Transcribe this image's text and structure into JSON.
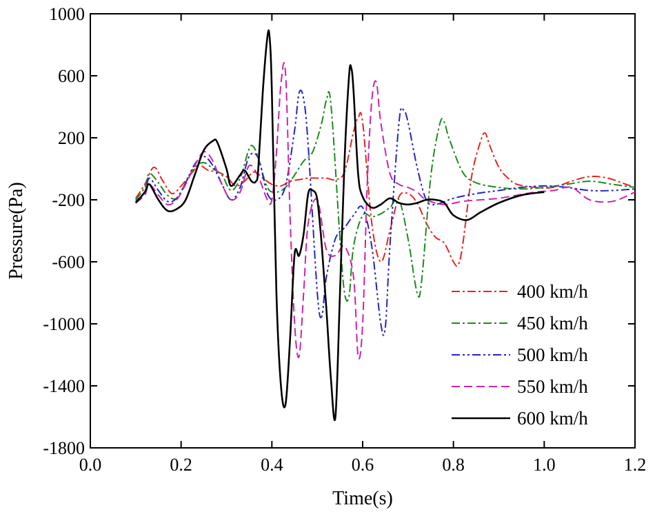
{
  "chart_data": {
    "type": "line",
    "title": "",
    "xlabel": "Time(s)",
    "ylabel": "Pressure(Pa)",
    "xlim": [
      0.0,
      1.2
    ],
    "ylim": [
      -1800,
      1000
    ],
    "xticks": [
      0.0,
      0.2,
      0.4,
      0.6,
      0.8,
      1.0,
      1.2
    ],
    "xtick_labels": [
      "0.0",
      "0.2",
      "0.4",
      "0.6",
      "0.8",
      "1.0",
      "1.2"
    ],
    "yticks": [
      1000,
      600,
      200,
      -200,
      -600,
      -1000,
      -1400,
      -1800
    ],
    "ytick_labels": [
      "1000",
      "600",
      "200",
      "-200",
      "-600",
      "-1000",
      "-1400",
      "-1800"
    ],
    "grid": false,
    "legend_position": "bottom-right",
    "series": [
      {
        "name": "400 km/h",
        "color": "#e8241c",
        "dash": "12,4,3,4",
        "x": [
          0.1,
          0.12,
          0.14,
          0.16,
          0.18,
          0.2,
          0.22,
          0.24,
          0.26,
          0.28,
          0.3,
          0.32,
          0.34,
          0.36,
          0.38,
          0.4,
          0.42,
          0.44,
          0.46,
          0.48,
          0.5,
          0.52,
          0.54,
          0.56,
          0.58,
          0.59,
          0.6,
          0.62,
          0.64,
          0.66,
          0.68,
          0.7,
          0.72,
          0.74,
          0.76,
          0.78,
          0.8,
          0.81,
          0.82,
          0.84,
          0.86,
          0.87,
          0.88,
          0.9,
          0.92,
          0.94,
          0.98,
          1.02,
          1.06,
          1.1,
          1.14,
          1.18,
          1.2
        ],
        "y": [
          -190,
          -100,
          10,
          -80,
          -160,
          -110,
          -40,
          20,
          -10,
          -20,
          -50,
          -110,
          -80,
          -20,
          -60,
          -100,
          -110,
          -80,
          -70,
          -60,
          -60,
          -60,
          -70,
          -20,
          240,
          330,
          300,
          -350,
          -600,
          -400,
          -180,
          -160,
          -220,
          -350,
          -440,
          -480,
          -600,
          -620,
          -500,
          -50,
          180,
          230,
          150,
          10,
          -60,
          -100,
          -120,
          -120,
          -80,
          -50,
          -60,
          -100,
          -120
        ]
      },
      {
        "name": "450 km/h",
        "color": "#1a8c1a",
        "dash": "12,4,3,4",
        "x": [
          0.1,
          0.12,
          0.13,
          0.15,
          0.17,
          0.19,
          0.21,
          0.23,
          0.25,
          0.27,
          0.29,
          0.31,
          0.33,
          0.35,
          0.36,
          0.37,
          0.39,
          0.41,
          0.43,
          0.45,
          0.47,
          0.49,
          0.51,
          0.52,
          0.53,
          0.55,
          0.56,
          0.57,
          0.58,
          0.6,
          0.62,
          0.64,
          0.66,
          0.68,
          0.7,
          0.72,
          0.73,
          0.75,
          0.77,
          0.78,
          0.79,
          0.82,
          0.85,
          0.9,
          0.95,
          1.0,
          1.05,
          1.1,
          1.15,
          1.2
        ],
        "y": [
          -200,
          -120,
          -30,
          -90,
          -170,
          -190,
          -90,
          10,
          40,
          0,
          -40,
          -140,
          -60,
          130,
          140,
          70,
          -120,
          -150,
          -120,
          -40,
          50,
          110,
          300,
          440,
          420,
          -450,
          -800,
          -820,
          -500,
          -300,
          -310,
          -290,
          -250,
          -200,
          -450,
          -800,
          -720,
          -50,
          290,
          300,
          200,
          -20,
          -90,
          -120,
          -130,
          -120,
          -100,
          -80,
          -100,
          -120
        ]
      },
      {
        "name": "500 km/h",
        "color": "#2222cc",
        "dash": "12,4,3,4,3,4",
        "x": [
          0.1,
          0.12,
          0.13,
          0.15,
          0.17,
          0.19,
          0.21,
          0.23,
          0.25,
          0.27,
          0.29,
          0.31,
          0.33,
          0.35,
          0.37,
          0.39,
          0.41,
          0.43,
          0.45,
          0.46,
          0.47,
          0.48,
          0.5,
          0.51,
          0.52,
          0.54,
          0.56,
          0.58,
          0.6,
          0.62,
          0.64,
          0.65,
          0.66,
          0.68,
          0.69,
          0.7,
          0.72,
          0.74,
          0.76,
          0.8,
          0.85,
          0.9,
          0.95,
          1.0,
          1.05,
          1.1,
          1.15,
          1.2
        ],
        "y": [
          -210,
          -150,
          -60,
          -140,
          -210,
          -190,
          -90,
          30,
          80,
          20,
          -100,
          -200,
          -120,
          80,
          70,
          -160,
          -200,
          -110,
          250,
          490,
          450,
          150,
          -800,
          -950,
          -700,
          -450,
          -380,
          -300,
          -250,
          -500,
          -1000,
          -1020,
          -500,
          300,
          380,
          300,
          10,
          -200,
          -230,
          -190,
          -160,
          -140,
          -120,
          -110,
          -120,
          -140,
          -140,
          -130
        ]
      },
      {
        "name": "550 km/h",
        "color": "#cc22aa",
        "dash": "12,6",
        "x": [
          0.1,
          0.12,
          0.13,
          0.15,
          0.17,
          0.19,
          0.21,
          0.23,
          0.25,
          0.27,
          0.29,
          0.31,
          0.33,
          0.35,
          0.37,
          0.39,
          0.4,
          0.41,
          0.42,
          0.43,
          0.44,
          0.45,
          0.46,
          0.47,
          0.48,
          0.5,
          0.52,
          0.54,
          0.56,
          0.58,
          0.59,
          0.6,
          0.61,
          0.62,
          0.63,
          0.64,
          0.66,
          0.68,
          0.7,
          0.72,
          0.74,
          0.78,
          0.82,
          0.86,
          0.9,
          0.94,
          0.98,
          1.02,
          1.06,
          1.1,
          1.15,
          1.2
        ],
        "y": [
          -220,
          -170,
          -100,
          -170,
          -230,
          -200,
          -100,
          20,
          110,
          50,
          -100,
          -200,
          -150,
          20,
          -50,
          -200,
          -200,
          100,
          550,
          620,
          -300,
          -1000,
          -1210,
          -800,
          -350,
          -200,
          -520,
          -560,
          -500,
          -700,
          -1210,
          -1000,
          -100,
          440,
          560,
          300,
          -30,
          -100,
          -120,
          -150,
          -200,
          -230,
          -210,
          -200,
          -190,
          -170,
          -150,
          -140,
          -120,
          -200,
          -210,
          -150
        ]
      },
      {
        "name": "600 km/h",
        "color": "#000000",
        "dash": "",
        "x": [
          0.1,
          0.12,
          0.13,
          0.15,
          0.17,
          0.19,
          0.21,
          0.23,
          0.25,
          0.27,
          0.28,
          0.3,
          0.31,
          0.33,
          0.34,
          0.355,
          0.365,
          0.37,
          0.38,
          0.39,
          0.395,
          0.4,
          0.41,
          0.42,
          0.43,
          0.44,
          0.45,
          0.46,
          0.47,
          0.48,
          0.49,
          0.5,
          0.51,
          0.52,
          0.53,
          0.54,
          0.55,
          0.56,
          0.57,
          0.575,
          0.58,
          0.59,
          0.6,
          0.62,
          0.64,
          0.66,
          0.68,
          0.7,
          0.72,
          0.74,
          0.76,
          0.78,
          0.8,
          0.83,
          0.86,
          0.9,
          0.95,
          1.0
        ],
        "y": [
          -220,
          -150,
          -100,
          -200,
          -270,
          -260,
          -200,
          -40,
          120,
          180,
          170,
          0,
          -110,
          -40,
          -10,
          -80,
          -80,
          0,
          500,
          850,
          850,
          500,
          -800,
          -1400,
          -1520,
          -1100,
          -550,
          -560,
          -420,
          -160,
          -140,
          -200,
          -500,
          -900,
          -1350,
          -1600,
          -800,
          50,
          600,
          650,
          500,
          -30,
          -180,
          -250,
          -230,
          -190,
          -220,
          -230,
          -220,
          -200,
          -200,
          -220,
          -300,
          -330,
          -280,
          -220,
          -170,
          -150
        ]
      }
    ]
  }
}
